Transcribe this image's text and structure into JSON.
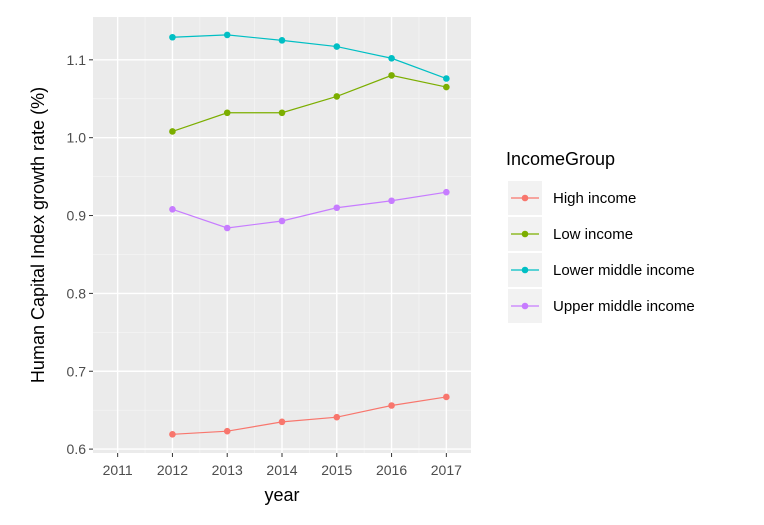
{
  "chart_data": {
    "type": "line",
    "xlabel": "year",
    "ylabel": "Human Capital Index growth rate (%)",
    "x_ticks": [
      "2011",
      "2012",
      "2013",
      "2014",
      "2015",
      "2016",
      "2017"
    ],
    "y_ticks": [
      "0.6",
      "0.7",
      "0.8",
      "0.9",
      "1.0",
      "1.1"
    ],
    "xlim": [
      2010.55,
      2017.45
    ],
    "ylim": [
      0.595,
      1.155
    ],
    "grid": true,
    "legend": {
      "title": "IncomeGroup",
      "position": "right"
    },
    "x": [
      2012,
      2013,
      2014,
      2015,
      2016,
      2017
    ],
    "series": [
      {
        "name": "High income",
        "color": "#F8766D",
        "values": [
          0.619,
          0.623,
          0.635,
          0.641,
          0.656,
          0.667
        ]
      },
      {
        "name": "Low income",
        "color": "#7CAE00",
        "values": [
          1.008,
          1.032,
          1.032,
          1.053,
          1.08,
          1.065
        ]
      },
      {
        "name": "Lower middle income",
        "color": "#00BFC4",
        "values": [
          1.129,
          1.132,
          1.125,
          1.117,
          1.102,
          1.076
        ]
      },
      {
        "name": "Upper middle income",
        "color": "#C77CFF",
        "values": [
          0.908,
          0.884,
          0.893,
          0.91,
          0.919,
          0.93
        ]
      }
    ]
  }
}
